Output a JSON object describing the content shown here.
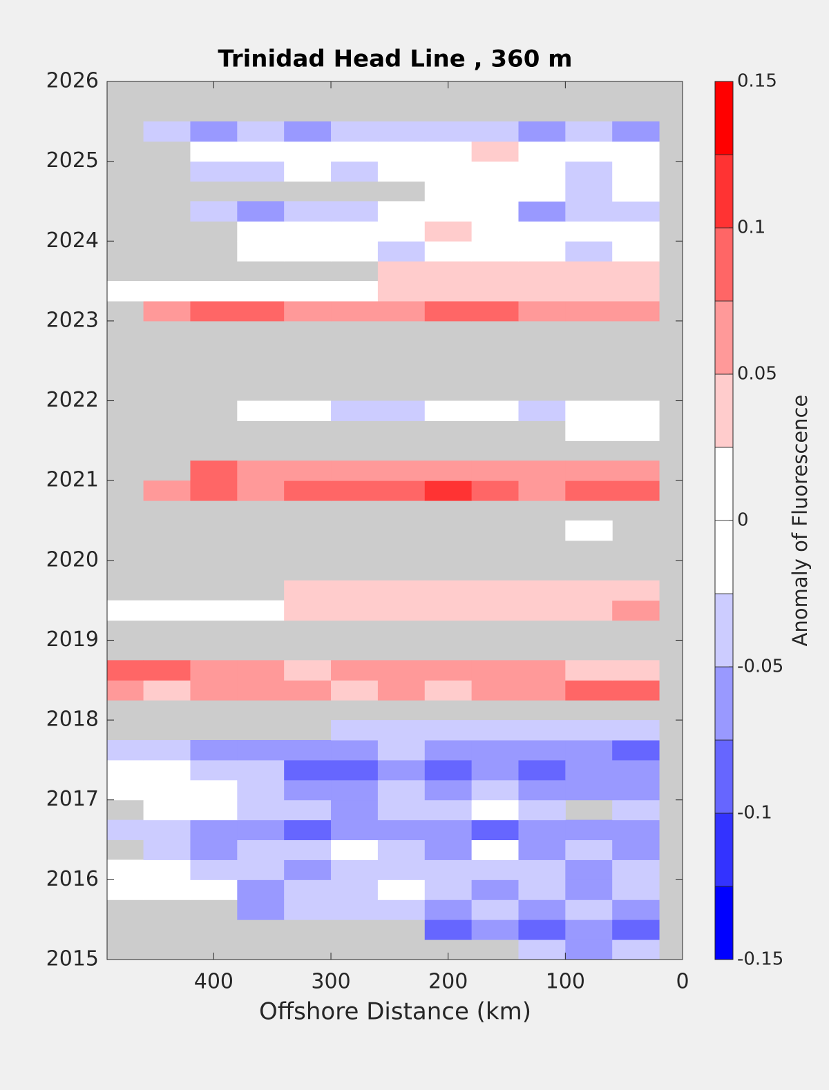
{
  "chart_data": {
    "type": "contourf",
    "title": "Trinidad Head Line , 360 m",
    "x_label": "Offshore Distance (km)",
    "colorbar_label": "Anomaly of Fluorescence",
    "xlim": [
      491,
      0
    ],
    "ylim": [
      2015,
      2026
    ],
    "xticks": [
      400,
      300,
      200,
      100,
      0
    ],
    "yticks": [
      2015,
      2016,
      2017,
      2018,
      2019,
      2020,
      2021,
      2022,
      2023,
      2024,
      2025,
      2026
    ],
    "missing_color": "#cccccc",
    "colorbar": {
      "levels": [
        -0.15,
        -0.125,
        -0.1,
        -0.075,
        -0.05,
        -0.025,
        0,
        0.025,
        0.05,
        0.075,
        0.1,
        0.125,
        0.15
      ],
      "colors": [
        "#0000ff",
        "#3333ff",
        "#6666ff",
        "#9999ff",
        "#ccccff",
        "#ffffff",
        "#ffffff",
        "#ffcccc",
        "#ff9999",
        "#ff6666",
        "#ff3333",
        "#ff0000"
      ],
      "ticks": [
        -0.15,
        -0.1,
        -0.05,
        0,
        0.05,
        0.1,
        0.15
      ]
    },
    "x": [
      480,
      440,
      400,
      360,
      320,
      280,
      240,
      200,
      160,
      120,
      80,
      40
    ],
    "y": [
      2015.125,
      2015.375,
      2015.625,
      2015.875,
      2016.125,
      2016.375,
      2016.625,
      2016.875,
      2017.125,
      2017.375,
      2017.625,
      2017.875,
      2018.125,
      2018.375,
      2018.625,
      2018.875,
      2019.125,
      2019.375,
      2019.625,
      2019.875,
      2020.125,
      2020.375,
      2020.625,
      2020.875,
      2021.125,
      2021.375,
      2021.625,
      2021.875,
      2022.125,
      2022.375,
      2022.625,
      2022.875,
      2023.125,
      2023.375,
      2023.625,
      2023.875,
      2024.125,
      2024.375,
      2024.625,
      2024.875,
      2025.125,
      2025.375,
      2025.625,
      2025.875
    ],
    "z": [
      [
        null,
        null,
        null,
        null,
        null,
        null,
        null,
        null,
        null,
        -0.04,
        -0.06,
        -0.04
      ],
      [
        null,
        null,
        null,
        null,
        null,
        null,
        null,
        -0.09,
        -0.06,
        -0.09,
        -0.06,
        -0.09
      ],
      [
        null,
        null,
        null,
        -0.06,
        -0.04,
        -0.04,
        -0.04,
        -0.06,
        -0.04,
        -0.06,
        -0.04,
        -0.06
      ],
      [
        0,
        0,
        0,
        -0.06,
        -0.04,
        -0.04,
        0,
        -0.04,
        -0.06,
        -0.04,
        -0.06,
        -0.04
      ],
      [
        0,
        0,
        -0.04,
        -0.04,
        -0.06,
        -0.04,
        -0.04,
        -0.04,
        -0.04,
        -0.04,
        -0.06,
        -0.04
      ],
      [
        null,
        -0.04,
        -0.06,
        -0.04,
        -0.04,
        0,
        -0.04,
        -0.06,
        0,
        -0.06,
        -0.04,
        -0.06
      ],
      [
        -0.04,
        -0.04,
        -0.06,
        -0.06,
        -0.09,
        -0.06,
        -0.06,
        -0.06,
        -0.09,
        -0.06,
        -0.06,
        -0.06
      ],
      [
        null,
        0,
        0,
        -0.04,
        -0.04,
        -0.06,
        -0.04,
        -0.04,
        0,
        -0.04,
        null,
        -0.04
      ],
      [
        0,
        0,
        0,
        -0.04,
        -0.06,
        -0.06,
        -0.04,
        -0.06,
        -0.04,
        -0.06,
        -0.06,
        -0.06
      ],
      [
        0,
        0,
        -0.04,
        -0.04,
        -0.09,
        -0.09,
        -0.06,
        -0.09,
        -0.06,
        -0.09,
        -0.06,
        -0.06
      ],
      [
        -0.04,
        -0.04,
        -0.06,
        -0.06,
        -0.06,
        -0.06,
        -0.04,
        -0.06,
        -0.06,
        -0.06,
        -0.06,
        -0.09
      ],
      [
        null,
        null,
        null,
        null,
        null,
        -0.04,
        -0.04,
        -0.04,
        -0.04,
        -0.04,
        -0.04,
        -0.04
      ],
      [
        null,
        null,
        null,
        null,
        null,
        null,
        null,
        null,
        null,
        null,
        null,
        null
      ],
      [
        0.06,
        0.04,
        0.06,
        0.06,
        0.06,
        0.04,
        0.06,
        0.04,
        0.06,
        0.06,
        0.09,
        0.09
      ],
      [
        0.09,
        0.09,
        0.06,
        0.06,
        0.04,
        0.06,
        0.06,
        0.06,
        0.06,
        0.06,
        0.04,
        0.04
      ],
      [
        null,
        null,
        null,
        null,
        null,
        null,
        null,
        null,
        null,
        null,
        null,
        null
      ],
      [
        null,
        null,
        null,
        null,
        null,
        null,
        null,
        null,
        null,
        null,
        null,
        null
      ],
      [
        0,
        0,
        0,
        0,
        0.04,
        0.04,
        0.04,
        0.04,
        0.04,
        0.04,
        0.04,
        0.06
      ],
      [
        null,
        null,
        null,
        null,
        0.04,
        0.04,
        0.04,
        0.04,
        0.04,
        0.04,
        0.04,
        0.04
      ],
      [
        null,
        null,
        null,
        null,
        null,
        null,
        null,
        null,
        null,
        null,
        null,
        null
      ],
      [
        null,
        null,
        null,
        null,
        null,
        null,
        null,
        null,
        null,
        null,
        null,
        null
      ],
      [
        null,
        null,
        null,
        null,
        null,
        null,
        null,
        null,
        null,
        null,
        0,
        null
      ],
      [
        null,
        null,
        null,
        null,
        null,
        null,
        null,
        null,
        null,
        null,
        null,
        null
      ],
      [
        null,
        0.06,
        0.09,
        0.06,
        0.09,
        0.09,
        0.09,
        0.11,
        0.09,
        0.06,
        0.09,
        0.09
      ],
      [
        null,
        null,
        0.09,
        0.06,
        0.06,
        0.06,
        0.06,
        0.06,
        0.06,
        0.06,
        0.06,
        0.06
      ],
      [
        null,
        null,
        null,
        null,
        null,
        null,
        null,
        null,
        null,
        null,
        null,
        null
      ],
      [
        null,
        null,
        null,
        null,
        null,
        null,
        null,
        null,
        null,
        null,
        0,
        0
      ],
      [
        null,
        null,
        null,
        0,
        0,
        -0.04,
        -0.04,
        0,
        0,
        -0.04,
        0,
        0
      ],
      [
        null,
        null,
        null,
        null,
        null,
        null,
        null,
        null,
        null,
        null,
        null,
        null
      ],
      [
        null,
        null,
        null,
        null,
        null,
        null,
        null,
        null,
        null,
        null,
        null,
        null
      ],
      [
        null,
        null,
        null,
        null,
        null,
        null,
        null,
        null,
        null,
        null,
        null,
        null
      ],
      [
        null,
        null,
        null,
        null,
        null,
        null,
        null,
        null,
        null,
        null,
        null,
        null
      ],
      [
        null,
        0.06,
        0.09,
        0.09,
        0.06,
        0.06,
        0.06,
        0.09,
        0.09,
        0.06,
        0.06,
        0.06
      ],
      [
        0,
        0,
        0,
        0,
        0,
        0,
        0.04,
        0.04,
        0.04,
        0.04,
        0.04,
        0.04
      ],
      [
        null,
        null,
        null,
        null,
        null,
        null,
        0.04,
        0.04,
        0.04,
        0.04,
        0.04,
        0.04
      ],
      [
        null,
        null,
        null,
        0,
        0,
        0,
        -0.04,
        0,
        0,
        0,
        -0.04,
        0
      ],
      [
        null,
        null,
        null,
        0,
        0,
        0,
        0,
        0.04,
        0,
        0,
        0,
        0
      ],
      [
        null,
        null,
        -0.04,
        -0.06,
        -0.04,
        -0.04,
        0,
        0,
        0,
        -0.06,
        -0.04,
        -0.04
      ],
      [
        null,
        null,
        null,
        null,
        null,
        null,
        null,
        0,
        0,
        0,
        -0.04,
        0
      ],
      [
        null,
        null,
        -0.04,
        -0.04,
        0,
        -0.04,
        0,
        0,
        0,
        0,
        -0.04,
        0
      ],
      [
        null,
        null,
        0,
        0,
        0,
        0,
        0,
        0,
        0.04,
        0,
        0,
        0
      ],
      [
        null,
        -0.04,
        -0.06,
        -0.04,
        -0.06,
        -0.04,
        -0.04,
        -0.04,
        -0.04,
        -0.06,
        -0.04,
        -0.06
      ],
      [
        null,
        null,
        null,
        null,
        null,
        null,
        null,
        null,
        null,
        null,
        null,
        null
      ],
      [
        null,
        null,
        null,
        null,
        null,
        null,
        null,
        null,
        null,
        null,
        null,
        null
      ]
    ]
  }
}
